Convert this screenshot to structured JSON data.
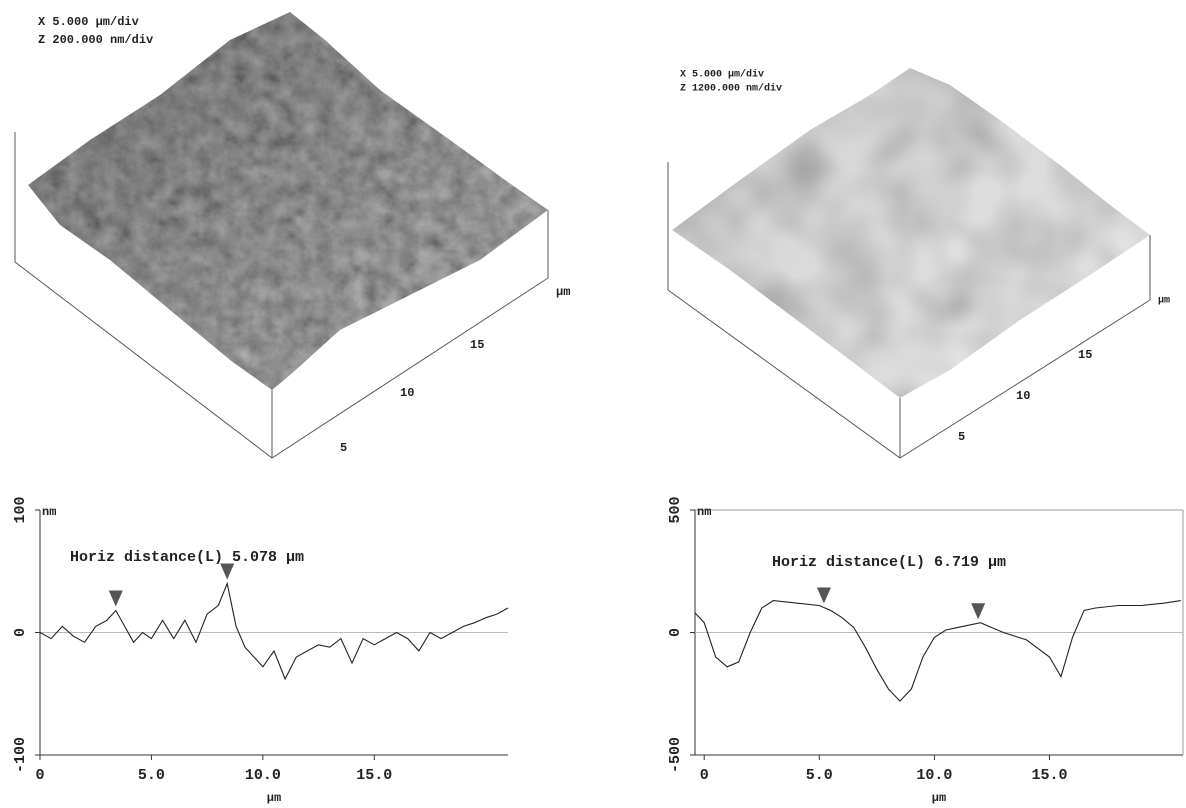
{
  "surfaces": [
    {
      "x_scale": "X 5.000 μm/div",
      "z_scale": "Z 200.000 nm/div",
      "unit": "μm",
      "ticks": [
        "5",
        "10",
        "15"
      ]
    },
    {
      "x_scale": "X 5.000 μm/div",
      "z_scale": "Z 1200.000 nm/div",
      "unit": "μm",
      "ticks": [
        "5",
        "10",
        "15"
      ]
    }
  ],
  "chart_data": [
    {
      "type": "line",
      "annotation": "Horiz distance(L) 5.078 μm",
      "y_label": "nm",
      "x_label": "μm",
      "x": [
        0,
        0.5,
        1,
        1.5,
        2,
        2.5,
        3,
        3.4,
        3.8,
        4.2,
        4.6,
        5,
        5.5,
        6,
        6.5,
        7,
        7.5,
        8,
        8.4,
        8.8,
        9.2,
        9.6,
        10,
        10.5,
        11,
        11.5,
        12,
        12.5,
        13,
        13.5,
        14,
        14.5,
        15,
        15.5,
        16,
        16.5,
        17,
        17.5,
        18,
        18.5,
        19,
        19.5,
        20,
        20.5,
        21
      ],
      "values": [
        0,
        -5,
        5,
        -3,
        -8,
        5,
        10,
        18,
        5,
        -8,
        0,
        -5,
        10,
        -5,
        10,
        -8,
        15,
        22,
        40,
        5,
        -12,
        -20,
        -28,
        -15,
        -38,
        -20,
        -15,
        -10,
        -12,
        -5,
        -25,
        -5,
        -10,
        -5,
        0,
        -5,
        -15,
        0,
        -5,
        0,
        5,
        8,
        12,
        15,
        20
      ],
      "line_color": "#222222",
      "markers": [
        3.4,
        8.4
      ],
      "marker_color": "#555555",
      "xlim": [
        0,
        21
      ],
      "ylim": [
        -100,
        100
      ],
      "xticks": [
        0,
        {
          "value": 5,
          "label": "5.0"
        },
        {
          "value": 10,
          "label": "10.0"
        },
        {
          "value": 15,
          "label": "15.0"
        }
      ],
      "yticks": [
        -100,
        0,
        100
      ],
      "zero_line": true
    },
    {
      "type": "line",
      "annotation": "Horiz distance(L) 6.719 μm",
      "y_label": "nm",
      "x_label": "μm",
      "x": [
        -0.4,
        0,
        0.5,
        1,
        1.5,
        2,
        2.5,
        3,
        4,
        5,
        5.5,
        6,
        6.5,
        7,
        7.5,
        8,
        8.5,
        9,
        9.5,
        10,
        10.5,
        11,
        12,
        12.5,
        13,
        14,
        15,
        15.5,
        16,
        16.5,
        17,
        18,
        19,
        20,
        20.7
      ],
      "values": [
        80,
        40,
        -100,
        -140,
        -120,
        0,
        100,
        130,
        120,
        110,
        90,
        60,
        20,
        -60,
        -150,
        -230,
        -280,
        -230,
        -100,
        -20,
        10,
        20,
        40,
        20,
        0,
        -30,
        -100,
        -180,
        -20,
        90,
        100,
        110,
        110,
        120,
        130
      ],
      "line_color": "#222222",
      "markers": [
        5.2,
        11.9
      ],
      "marker_color": "#555555",
      "xlim": [
        -0.4,
        20.8
      ],
      "ylim": [
        -500,
        500
      ],
      "xticks": [
        0,
        {
          "value": 5,
          "label": "5.0"
        },
        {
          "value": 10,
          "label": "10.0"
        },
        {
          "value": 15,
          "label": "15.0"
        }
      ],
      "yticks": [
        -500,
        0,
        500
      ],
      "zero_line": true
    }
  ]
}
